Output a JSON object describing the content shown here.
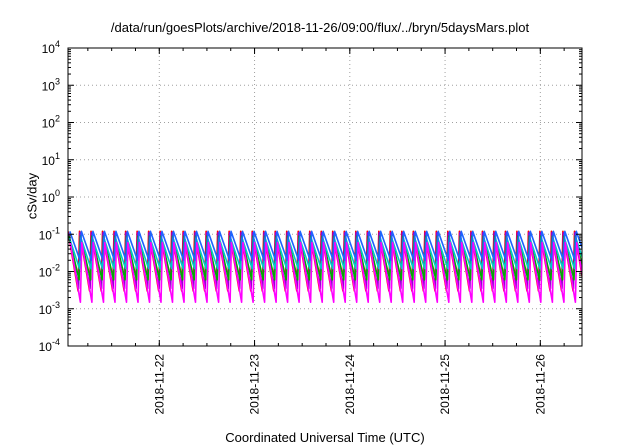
{
  "chart_data": {
    "type": "line",
    "title": "/data/run/goesPlots/archive/2018-11-26/09:00/flux/../bryn/5daysMars.plot",
    "xlabel": "Coordinated Universal Time (UTC)",
    "ylabel": "cSv/day",
    "y_scale": "log",
    "ylim": [
      0.0001,
      10000
    ],
    "y_ticks": [
      {
        "value": 0.0001,
        "base": "10",
        "exp": "-4"
      },
      {
        "value": 0.001,
        "base": "10",
        "exp": "-3"
      },
      {
        "value": 0.01,
        "base": "10",
        "exp": "-2"
      },
      {
        "value": 0.1,
        "base": "10",
        "exp": "-1"
      },
      {
        "value": 1,
        "base": "10",
        "exp": "0"
      },
      {
        "value": 10,
        "base": "10",
        "exp": "1"
      },
      {
        "value": 100,
        "base": "10",
        "exp": "2"
      },
      {
        "value": 1000,
        "base": "10",
        "exp": "3"
      },
      {
        "value": 10000,
        "base": "10",
        "exp": "4"
      }
    ],
    "xlim": [
      "2018-11-21 01:00",
      "2018-11-26 10:30"
    ],
    "x_ticks": [
      "2018-11-22",
      "2018-11-23",
      "2018-11-24",
      "2018-11-25",
      "2018-11-26"
    ],
    "grid": true,
    "sawtooth_period_hours": 2.9,
    "series": [
      {
        "color": "#ff0000",
        "peak": 0.12,
        "trough": 0.003
      },
      {
        "color": "#9400d3",
        "peak": 0.11,
        "trough": 0.0035
      },
      {
        "color": "#00aa00",
        "peak": 0.09,
        "trough": 0.006
      },
      {
        "color": "#00c8c8",
        "peak": 0.08,
        "trough": 0.012
      },
      {
        "color": "#1e64ff",
        "peak": 0.12,
        "trough": 0.02
      },
      {
        "color": "#ff00ff",
        "peak": 0.06,
        "trough": 0.0015
      }
    ],
    "colors": {
      "axis": "#000000",
      "grid": "#a0a0a0"
    }
  }
}
